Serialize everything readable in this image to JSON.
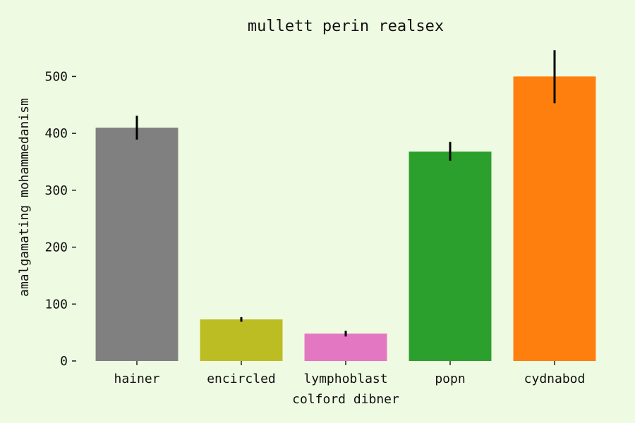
{
  "chart_data": {
    "type": "bar",
    "title": "mullett perin realsex",
    "xlabel": "colford dibner",
    "ylabel": "amalgamating mohammedanism",
    "categories": [
      "hainer",
      "encircled",
      "lymphoblast",
      "popn",
      "cydnabod"
    ],
    "values": [
      410,
      73,
      48,
      368,
      500
    ],
    "errors": [
      [
        389,
        431
      ],
      [
        69,
        77
      ],
      [
        43,
        53
      ],
      [
        352,
        385
      ],
      [
        453,
        546
      ]
    ],
    "colors": [
      "#808080",
      "#bcbd22",
      "#e377c2",
      "#2ca02c",
      "#ff7f0e"
    ],
    "yticks": [
      0,
      100,
      200,
      300,
      400,
      500
    ],
    "ylim": [
      0,
      560
    ],
    "grid": false,
    "legend": "none"
  }
}
